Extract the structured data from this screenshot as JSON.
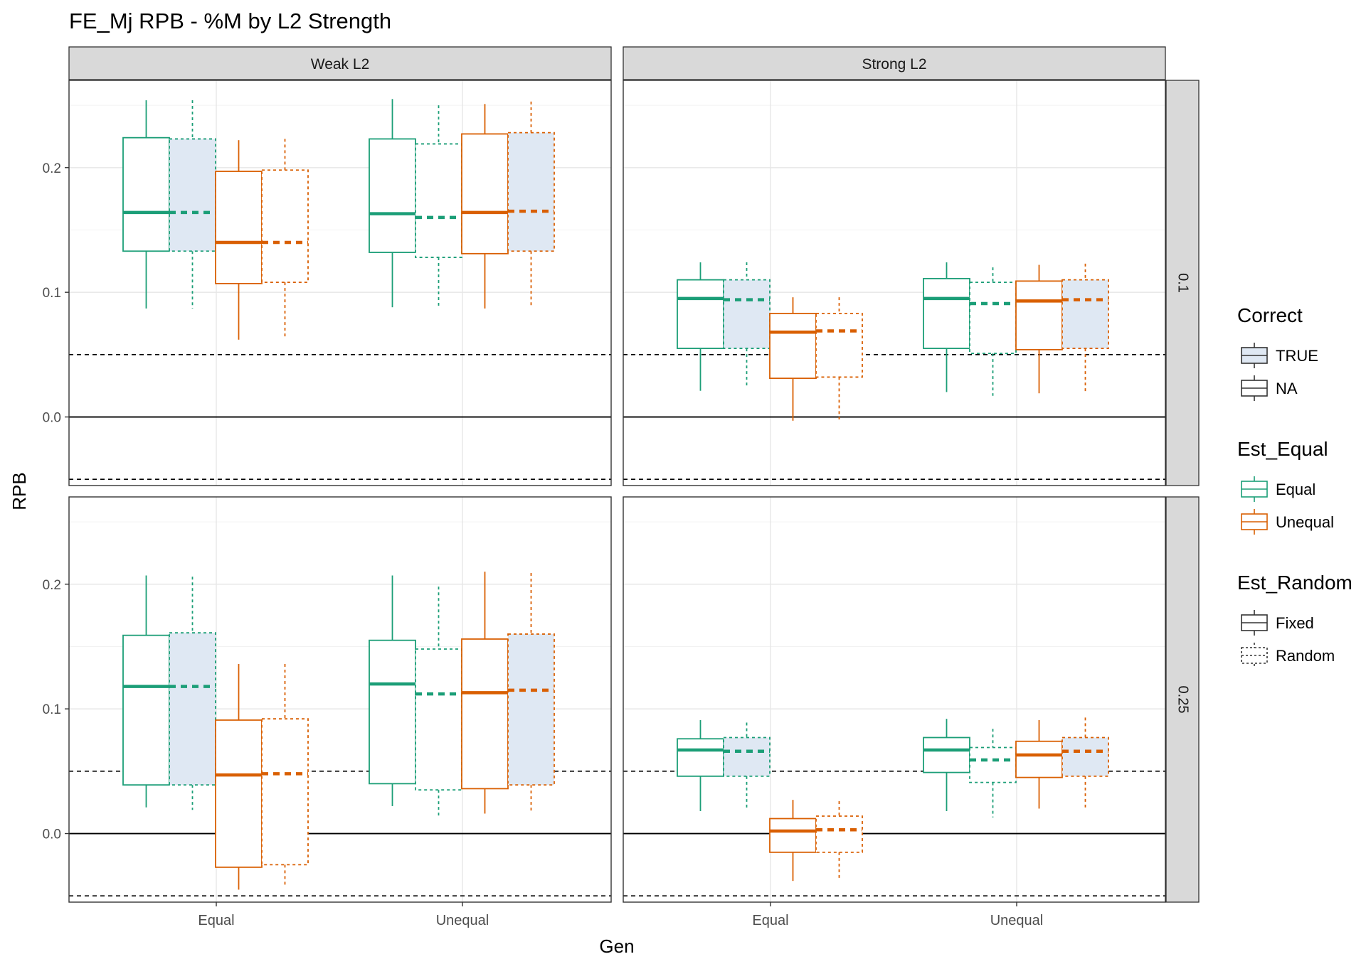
{
  "chart_data": {
    "type": "boxplot",
    "title": "FE_Mj RPB - %M by L2 Strength",
    "xlabel": "Gen",
    "ylabel": "RPB",
    "x_categories": [
      "Equal",
      "Unequal"
    ],
    "ylim": [
      -0.055,
      0.27
    ],
    "yticks": [
      0.0,
      0.1,
      0.2
    ],
    "ytick_labels": [
      "0.0",
      "0.1",
      "0.2"
    ],
    "grid": true,
    "reference_lines": {
      "solid": [
        0.0
      ],
      "dashed": [
        0.05,
        -0.05
      ]
    },
    "facet_columns": [
      "Weak L2",
      "Strong L2"
    ],
    "facet_rows": [
      "0.1",
      "0.25"
    ],
    "colors": {
      "Equal": "#1b9e77",
      "Unequal": "#d95f02",
      "fill_true": "#dfe8f3",
      "strip_bg": "#d9d9d9",
      "panel_border": "#333333"
    },
    "legends": [
      {
        "title": "Correct",
        "entries": [
          {
            "label": "TRUE",
            "key": "true"
          },
          {
            "label": "NA",
            "key": "na"
          }
        ]
      },
      {
        "title": "Est_Equal",
        "entries": [
          {
            "label": "Equal",
            "key": "Equal"
          },
          {
            "label": "Unequal",
            "key": "Unequal"
          }
        ]
      },
      {
        "title": "Est_Random",
        "entries": [
          {
            "label": "Fixed",
            "key": "fixed"
          },
          {
            "label": "Random",
            "key": "random"
          }
        ]
      }
    ],
    "legend_placement": "right",
    "box_order": [
      "Equal-Fixed",
      "Equal-Random",
      "Unequal-Fixed",
      "Unequal-Random"
    ],
    "panels": [
      {
        "col": "Weak L2",
        "row": "0.1",
        "groups": [
          {
            "gen": "Equal",
            "boxes": [
              {
                "est_equal": "Equal",
                "est_random": "Fixed",
                "correct": "NA",
                "whisker_low": 0.087,
                "q1": 0.133,
                "median": 0.164,
                "q3": 0.224,
                "whisker_high": 0.254
              },
              {
                "est_equal": "Equal",
                "est_random": "Random",
                "correct": "TRUE",
                "whisker_low": 0.087,
                "q1": 0.133,
                "median": 0.164,
                "q3": 0.223,
                "whisker_high": 0.254
              },
              {
                "est_equal": "Unequal",
                "est_random": "Fixed",
                "correct": "NA",
                "whisker_low": 0.062,
                "q1": 0.107,
                "median": 0.14,
                "q3": 0.197,
                "whisker_high": 0.222
              },
              {
                "est_equal": "Unequal",
                "est_random": "Random",
                "correct": "NA",
                "whisker_low": 0.063,
                "q1": 0.108,
                "median": 0.14,
                "q3": 0.198,
                "whisker_high": 0.223
              }
            ]
          },
          {
            "gen": "Unequal",
            "boxes": [
              {
                "est_equal": "Equal",
                "est_random": "Fixed",
                "correct": "NA",
                "whisker_low": 0.088,
                "q1": 0.132,
                "median": 0.163,
                "q3": 0.223,
                "whisker_high": 0.255
              },
              {
                "est_equal": "Equal",
                "est_random": "Random",
                "correct": "NA",
                "whisker_low": 0.088,
                "q1": 0.128,
                "median": 0.16,
                "q3": 0.219,
                "whisker_high": 0.25
              },
              {
                "est_equal": "Unequal",
                "est_random": "Fixed",
                "correct": "NA",
                "whisker_low": 0.087,
                "q1": 0.131,
                "median": 0.164,
                "q3": 0.227,
                "whisker_high": 0.251
              },
              {
                "est_equal": "Unequal",
                "est_random": "Random",
                "correct": "TRUE",
                "whisker_low": 0.088,
                "q1": 0.133,
                "median": 0.165,
                "q3": 0.228,
                "whisker_high": 0.253
              }
            ]
          }
        ]
      },
      {
        "col": "Strong L2",
        "row": "0.1",
        "groups": [
          {
            "gen": "Equal",
            "boxes": [
              {
                "est_equal": "Equal",
                "est_random": "Fixed",
                "correct": "NA",
                "whisker_low": 0.021,
                "q1": 0.055,
                "median": 0.095,
                "q3": 0.11,
                "whisker_high": 0.124
              },
              {
                "est_equal": "Equal",
                "est_random": "Random",
                "correct": "TRUE",
                "whisker_low": 0.024,
                "q1": 0.055,
                "median": 0.094,
                "q3": 0.11,
                "whisker_high": 0.124
              },
              {
                "est_equal": "Unequal",
                "est_random": "Fixed",
                "correct": "NA",
                "whisker_low": -0.003,
                "q1": 0.031,
                "median": 0.068,
                "q3": 0.083,
                "whisker_high": 0.096
              },
              {
                "est_equal": "Unequal",
                "est_random": "Random",
                "correct": "NA",
                "whisker_low": -0.002,
                "q1": 0.032,
                "median": 0.069,
                "q3": 0.083,
                "whisker_high": 0.096
              }
            ]
          },
          {
            "gen": "Unequal",
            "boxes": [
              {
                "est_equal": "Equal",
                "est_random": "Fixed",
                "correct": "NA",
                "whisker_low": 0.02,
                "q1": 0.055,
                "median": 0.095,
                "q3": 0.111,
                "whisker_high": 0.124
              },
              {
                "est_equal": "Equal",
                "est_random": "Random",
                "correct": "NA",
                "whisker_low": 0.017,
                "q1": 0.051,
                "median": 0.091,
                "q3": 0.108,
                "whisker_high": 0.12
              },
              {
                "est_equal": "Unequal",
                "est_random": "Fixed",
                "correct": "NA",
                "whisker_low": 0.019,
                "q1": 0.054,
                "median": 0.093,
                "q3": 0.109,
                "whisker_high": 0.122
              },
              {
                "est_equal": "Unequal",
                "est_random": "Random",
                "correct": "TRUE",
                "whisker_low": 0.02,
                "q1": 0.055,
                "median": 0.094,
                "q3": 0.11,
                "whisker_high": 0.123
              }
            ]
          }
        ]
      },
      {
        "col": "Weak L2",
        "row": "0.25",
        "groups": [
          {
            "gen": "Equal",
            "boxes": [
              {
                "est_equal": "Equal",
                "est_random": "Fixed",
                "correct": "NA",
                "whisker_low": 0.021,
                "q1": 0.039,
                "median": 0.118,
                "q3": 0.159,
                "whisker_high": 0.207
              },
              {
                "est_equal": "Equal",
                "est_random": "Random",
                "correct": "TRUE",
                "whisker_low": 0.019,
                "q1": 0.039,
                "median": 0.118,
                "q3": 0.161,
                "whisker_high": 0.206
              },
              {
                "est_equal": "Unequal",
                "est_random": "Fixed",
                "correct": "NA",
                "whisker_low": -0.045,
                "q1": -0.027,
                "median": 0.047,
                "q3": 0.091,
                "whisker_high": 0.136
              },
              {
                "est_equal": "Unequal",
                "est_random": "Random",
                "correct": "NA",
                "whisker_low": -0.042,
                "q1": -0.025,
                "median": 0.048,
                "q3": 0.092,
                "whisker_high": 0.136
              }
            ]
          },
          {
            "gen": "Unequal",
            "boxes": [
              {
                "est_equal": "Equal",
                "est_random": "Fixed",
                "correct": "NA",
                "whisker_low": 0.022,
                "q1": 0.04,
                "median": 0.12,
                "q3": 0.155,
                "whisker_high": 0.207
              },
              {
                "est_equal": "Equal",
                "est_random": "Random",
                "correct": "NA",
                "whisker_low": 0.013,
                "q1": 0.035,
                "median": 0.112,
                "q3": 0.148,
                "whisker_high": 0.198
              },
              {
                "est_equal": "Unequal",
                "est_random": "Fixed",
                "correct": "NA",
                "whisker_low": 0.016,
                "q1": 0.036,
                "median": 0.113,
                "q3": 0.156,
                "whisker_high": 0.21
              },
              {
                "est_equal": "Unequal",
                "est_random": "Random",
                "correct": "TRUE",
                "whisker_low": 0.018,
                "q1": 0.039,
                "median": 0.115,
                "q3": 0.16,
                "whisker_high": 0.209
              }
            ]
          }
        ]
      },
      {
        "col": "Strong L2",
        "row": "0.25",
        "groups": [
          {
            "gen": "Equal",
            "boxes": [
              {
                "est_equal": "Equal",
                "est_random": "Fixed",
                "correct": "NA",
                "whisker_low": 0.018,
                "q1": 0.046,
                "median": 0.067,
                "q3": 0.076,
                "whisker_high": 0.091
              },
              {
                "est_equal": "Equal",
                "est_random": "Random",
                "correct": "TRUE",
                "whisker_low": 0.02,
                "q1": 0.046,
                "median": 0.066,
                "q3": 0.077,
                "whisker_high": 0.089
              },
              {
                "est_equal": "Unequal",
                "est_random": "Fixed",
                "correct": "NA",
                "whisker_low": -0.038,
                "q1": -0.015,
                "median": 0.002,
                "q3": 0.012,
                "whisker_high": 0.027
              },
              {
                "est_equal": "Unequal",
                "est_random": "Random",
                "correct": "NA",
                "whisker_low": -0.036,
                "q1": -0.015,
                "median": 0.003,
                "q3": 0.014,
                "whisker_high": 0.026
              }
            ]
          },
          {
            "gen": "Unequal",
            "boxes": [
              {
                "est_equal": "Equal",
                "est_random": "Fixed",
                "correct": "NA",
                "whisker_low": 0.018,
                "q1": 0.049,
                "median": 0.067,
                "q3": 0.077,
                "whisker_high": 0.092
              },
              {
                "est_equal": "Equal",
                "est_random": "Random",
                "correct": "NA",
                "whisker_low": 0.013,
                "q1": 0.041,
                "median": 0.059,
                "q3": 0.069,
                "whisker_high": 0.084
              },
              {
                "est_equal": "Unequal",
                "est_random": "Fixed",
                "correct": "NA",
                "whisker_low": 0.02,
                "q1": 0.045,
                "median": 0.063,
                "q3": 0.074,
                "whisker_high": 0.091
              },
              {
                "est_equal": "Unequal",
                "est_random": "Random",
                "correct": "TRUE",
                "whisker_low": 0.021,
                "q1": 0.046,
                "median": 0.066,
                "q3": 0.077,
                "whisker_high": 0.093
              }
            ]
          }
        ]
      }
    ]
  }
}
